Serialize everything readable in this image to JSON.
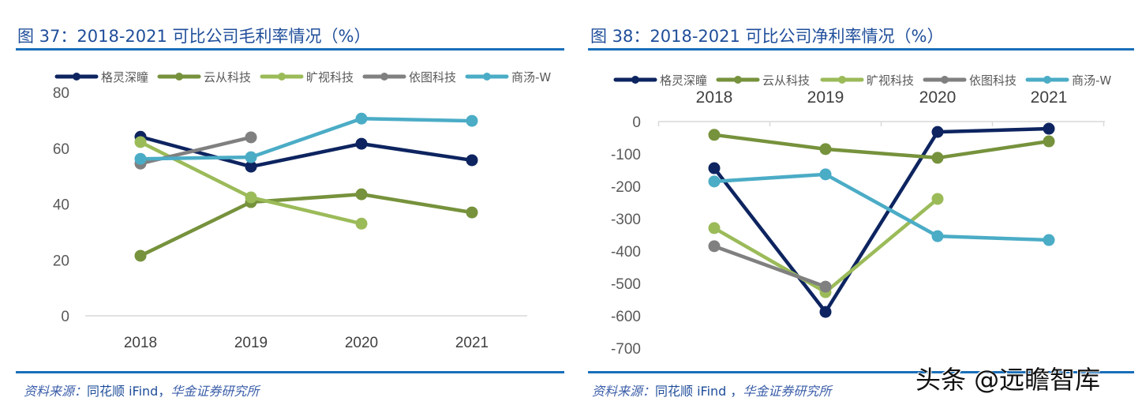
{
  "colors": {
    "格灵深瞳": "#0d2460",
    "云从科技": "#76923c",
    "旷视科技": "#9bbb59",
    "依图科技": "#808080",
    "商汤-W": "#4bacc6",
    "title": "#1f4e9a",
    "rule": "#1a6fba"
  },
  "left": {
    "title": "图 37：2018-2021 可比公司毛利率情况（%）",
    "source_prefix": "资料来源：",
    "source_mid": "同花顺 iFind，",
    "source_suffix": "华金证券研究所"
  },
  "right": {
    "title": "图 38：2018-2021 可比公司净利率情况（%）",
    "source_prefix": "资料来源：",
    "source_mid": "同花顺 iFind ，",
    "source_suffix": "华金证券研究所"
  },
  "watermark": "头条 @远瞻智库",
  "chart_data": [
    {
      "type": "line",
      "title": "图 37：2018-2021 可比公司毛利率情况（%）",
      "categories": [
        "2018",
        "2019",
        "2020",
        "2021"
      ],
      "ylim": [
        0,
        80
      ],
      "yticks": [
        0,
        20,
        40,
        60,
        80
      ],
      "legend": "top",
      "grid": false,
      "series": [
        {
          "name": "格灵深瞳",
          "values": [
            64.1,
            53.4,
            61.6,
            55.7
          ]
        },
        {
          "name": "云从科技",
          "values": [
            21.5,
            40.7,
            43.5,
            37.0
          ]
        },
        {
          "name": "旷视科技",
          "values": [
            62.2,
            42.4,
            33.0,
            null
          ]
        },
        {
          "name": "依图科技",
          "values": [
            54.5,
            63.9,
            null,
            null
          ]
        },
        {
          "name": "商汤-W",
          "values": [
            56.2,
            56.8,
            70.6,
            69.8
          ]
        }
      ]
    },
    {
      "type": "line",
      "title": "图 38：2018-2021 可比公司净利率情况（%）",
      "categories": [
        "2018",
        "2019",
        "2020",
        "2021"
      ],
      "ylim": [
        -700,
        0
      ],
      "yticks": [
        0,
        -100,
        -200,
        -300,
        -400,
        -500,
        -600,
        -700
      ],
      "xaxis_position": "top",
      "legend": "top",
      "grid": false,
      "series": [
        {
          "name": "格灵深瞳",
          "values": [
            -144,
            -588,
            -32,
            -22
          ]
        },
        {
          "name": "云从科技",
          "values": [
            -41,
            -85,
            -112,
            -61
          ]
        },
        {
          "name": "旷视科技",
          "values": [
            -329,
            -527,
            -239,
            null
          ]
        },
        {
          "name": "依图科技",
          "values": [
            -385,
            -510,
            null,
            null
          ]
        },
        {
          "name": "商汤-W",
          "values": [
            -185,
            -163,
            -354,
            -366
          ]
        }
      ]
    }
  ]
}
